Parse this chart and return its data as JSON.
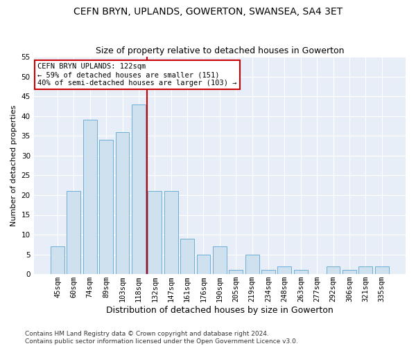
{
  "title": "CEFN BRYN, UPLANDS, GOWERTON, SWANSEA, SA4 3ET",
  "subtitle": "Size of property relative to detached houses in Gowerton",
  "xlabel": "Distribution of detached houses by size in Gowerton",
  "ylabel": "Number of detached properties",
  "categories": [
    "45sqm",
    "60sqm",
    "74sqm",
    "89sqm",
    "103sqm",
    "118sqm",
    "132sqm",
    "147sqm",
    "161sqm",
    "176sqm",
    "190sqm",
    "205sqm",
    "219sqm",
    "234sqm",
    "248sqm",
    "263sqm",
    "277sqm",
    "292sqm",
    "306sqm",
    "321sqm",
    "335sqm"
  ],
  "values": [
    7,
    21,
    39,
    34,
    36,
    43,
    21,
    21,
    9,
    5,
    7,
    1,
    5,
    1,
    2,
    1,
    0,
    2,
    1,
    2,
    2
  ],
  "bar_color": "#cfe0ef",
  "bar_edge_color": "#6aaed6",
  "vline_x_idx": 5.5,
  "vline_color": "#cc0000",
  "annotation_line1": "CEFN BRYN UPLANDS: 122sqm",
  "annotation_line2": "← 59% of detached houses are smaller (151)",
  "annotation_line3": "40% of semi-detached houses are larger (103) →",
  "ylim": [
    0,
    55
  ],
  "yticks": [
    0,
    5,
    10,
    15,
    20,
    25,
    30,
    35,
    40,
    45,
    50,
    55
  ],
  "footer_line1": "Contains HM Land Registry data © Crown copyright and database right 2024.",
  "footer_line2": "Contains public sector information licensed under the Open Government Licence v3.0.",
  "bg_color": "#ffffff",
  "plot_bg_color": "#e8eef7",
  "title_fontsize": 10,
  "subtitle_fontsize": 9,
  "xlabel_fontsize": 9,
  "ylabel_fontsize": 8,
  "tick_fontsize": 7.5,
  "annotation_fontsize": 7.5,
  "footer_fontsize": 6.5
}
